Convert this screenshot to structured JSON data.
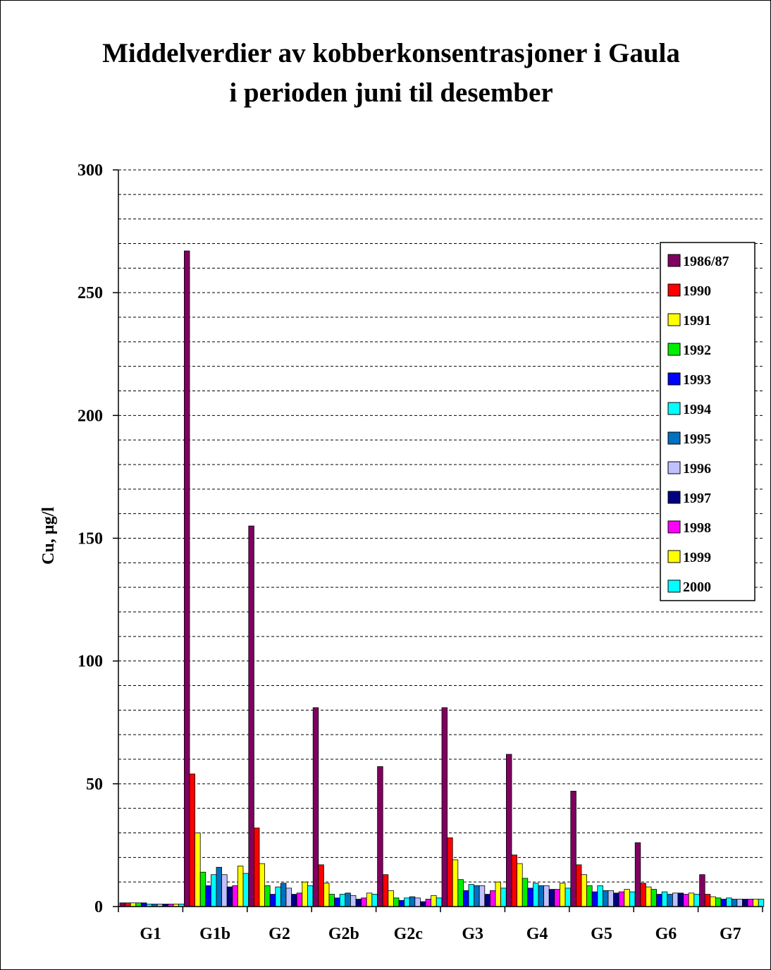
{
  "chart_data": {
    "type": "bar",
    "title_line1": "Middelverdier av kobberkonsentrasjoner i Gaula",
    "title_line2": "i perioden juni til desember",
    "ylabel": "Cu, µg/l",
    "ylim": [
      0,
      300
    ],
    "yticks": [
      "0",
      "50",
      "100",
      "150",
      "200",
      "250",
      "300"
    ],
    "grid": "dashed horizontal every 10",
    "legend_position": "right",
    "categories": [
      "G1",
      "G1b",
      "G2",
      "G2b",
      "G2c",
      "G3",
      "G4",
      "G5",
      "G6",
      "G7"
    ],
    "series": [
      {
        "name": "1986/87",
        "color": "#800060",
        "values": [
          1.5,
          267,
          155,
          81,
          57,
          81,
          62,
          47,
          26,
          13
        ]
      },
      {
        "name": "1990",
        "color": "#ff0000",
        "values": [
          1.5,
          54,
          32,
          17,
          13,
          28,
          21,
          17,
          9.5,
          5
        ]
      },
      {
        "name": "1991",
        "color": "#ffff00",
        "values": [
          1.5,
          30,
          17.5,
          9.5,
          6.5,
          19,
          17.5,
          13,
          8,
          4
        ]
      },
      {
        "name": "1992",
        "color": "#00ee00",
        "values": [
          1.5,
          14,
          8.5,
          5,
          3.5,
          11,
          11.5,
          8.5,
          7,
          3.5
        ]
      },
      {
        "name": "1993",
        "color": "#0000ff",
        "values": [
          1.5,
          8.5,
          5,
          3.5,
          2.5,
          6.5,
          7.5,
          6,
          5,
          3
        ]
      },
      {
        "name": "1994",
        "color": "#00ffff",
        "values": [
          1,
          13,
          8,
          5,
          3.5,
          9,
          9.5,
          8.5,
          6,
          3.5
        ]
      },
      {
        "name": "1995",
        "color": "#0070c0",
        "values": [
          1,
          16,
          9.5,
          5.5,
          4,
          8.5,
          8.5,
          6.5,
          5,
          3
        ]
      },
      {
        "name": "1996",
        "color": "#c0c0ff",
        "values": [
          1,
          13,
          7.5,
          4.5,
          3.5,
          8.5,
          8.5,
          6.5,
          5.5,
          3
        ]
      },
      {
        "name": "1997",
        "color": "#000080",
        "values": [
          1,
          8,
          5,
          3,
          2,
          5,
          7,
          5.5,
          5.5,
          3
        ]
      },
      {
        "name": "1998",
        "color": "#ff00ff",
        "values": [
          1,
          8.5,
          5.5,
          3.5,
          3,
          6.5,
          7,
          6,
          5,
          3
        ]
      },
      {
        "name": "1999",
        "color": "#ffff00",
        "values": [
          1,
          16.5,
          10,
          5.5,
          4.5,
          10,
          9.5,
          7,
          5.5,
          3
        ]
      },
      {
        "name": "2000",
        "color": "#00ffff",
        "values": [
          1,
          13.5,
          8.5,
          5,
          3.5,
          7.5,
          7.5,
          6,
          5,
          3
        ]
      }
    ]
  }
}
